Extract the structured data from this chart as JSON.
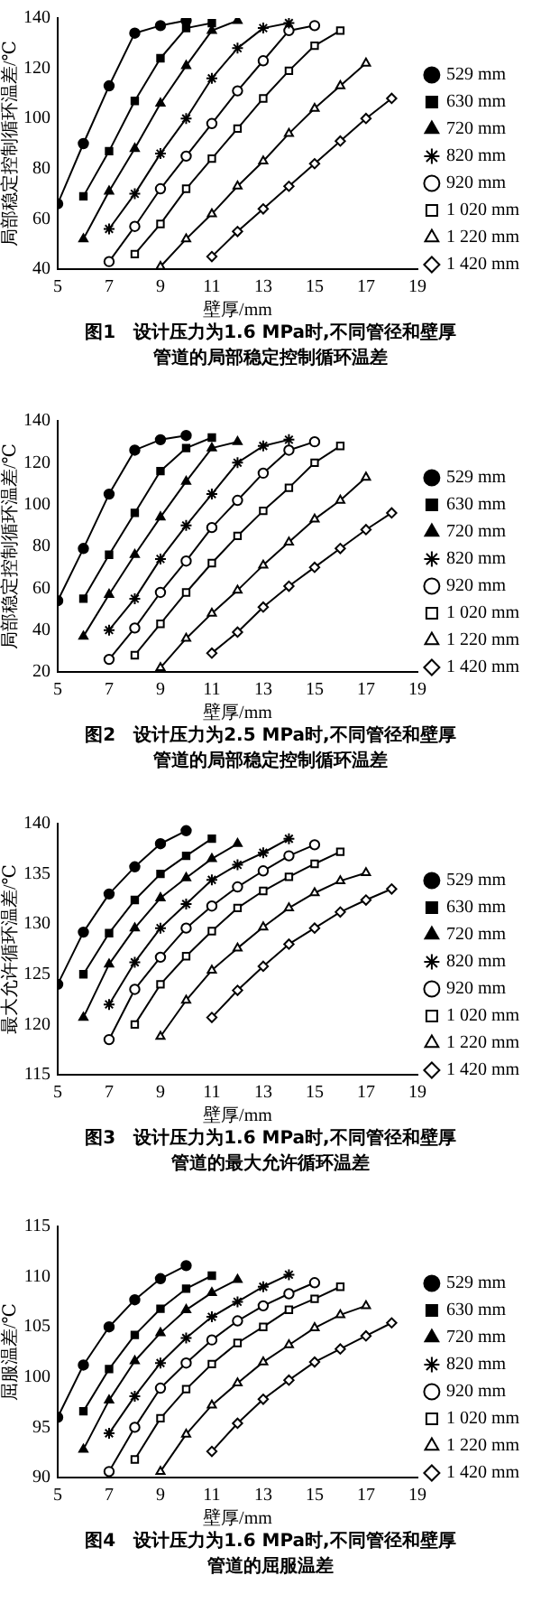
{
  "chart_data": [
    {
      "type": "line",
      "title": "图1　设计压力为1.6 MPa时,不同管径和壁厚管道的局部稳定控制循环温差",
      "xlabel": "壁厚/mm",
      "ylabel": "局部稳定控制循环温差/℃",
      "xlim": [
        5,
        19
      ],
      "xticks": [
        5,
        7,
        9,
        11,
        13,
        15,
        17,
        19
      ],
      "ylim": [
        40,
        140
      ],
      "yticks": [
        40,
        60,
        80,
        100,
        120,
        140
      ],
      "grid": false,
      "legend": "right",
      "line_style": "solid",
      "series": [
        {
          "name": "529 mm",
          "color": "#000000",
          "marker": "circle",
          "x": [
            5,
            6,
            7,
            8,
            9,
            10
          ],
          "values": [
            66,
            90,
            113,
            134,
            137,
            139
          ]
        },
        {
          "name": "630 mm",
          "color": "#000000",
          "marker": "square",
          "x": [
            6,
            7,
            8,
            9,
            10,
            11
          ],
          "values": [
            69,
            87,
            107,
            124,
            136,
            138
          ]
        },
        {
          "name": "720 mm",
          "color": "#000000",
          "marker": "triangle",
          "x": [
            6,
            7,
            8,
            9,
            10,
            11,
            12
          ],
          "values": [
            52,
            71,
            88,
            106,
            121,
            135,
            139
          ]
        },
        {
          "name": "820 mm",
          "color": "#000000",
          "marker": "cross",
          "x": [
            7,
            8,
            9,
            10,
            11,
            12,
            13,
            14
          ],
          "values": [
            56,
            70,
            86,
            100,
            116,
            128,
            136,
            138
          ]
        },
        {
          "name": "920 mm",
          "color": "#000000",
          "marker": "circle",
          "x": [
            7,
            8,
            9,
            10,
            11,
            12,
            13,
            14,
            15
          ],
          "values": [
            43,
            57,
            72,
            85,
            98,
            111,
            123,
            135,
            137
          ]
        },
        {
          "name": "1 020 mm",
          "color": "#000000",
          "marker": "square",
          "x": [
            8,
            9,
            10,
            11,
            12,
            13,
            14,
            15,
            16
          ],
          "values": [
            46,
            58,
            72,
            84,
            96,
            108,
            119,
            129,
            135
          ]
        },
        {
          "name": "1 220 mm",
          "color": "#000000",
          "marker": "triangle",
          "x": [
            9,
            10,
            11,
            12,
            13,
            14,
            15,
            16,
            17
          ],
          "values": [
            41,
            52,
            62,
            73,
            83,
            94,
            104,
            113,
            122
          ]
        },
        {
          "name": "1 420 mm",
          "color": "#000000",
          "marker": "diamond",
          "x": [
            11,
            12,
            13,
            14,
            15,
            16,
            17,
            18
          ],
          "values": [
            45,
            55,
            64,
            73,
            82,
            91,
            100,
            108
          ]
        }
      ]
    },
    {
      "type": "line",
      "title": "图2　设计压力为2.5 MPa时,不同管径和壁厚管道的局部稳定控制循环温差",
      "xlabel": "壁厚/mm",
      "ylabel": "局部稳定控制循环温差/℃",
      "xlim": [
        5,
        19
      ],
      "xticks": [
        5,
        7,
        9,
        11,
        13,
        15,
        17,
        19
      ],
      "ylim": [
        20,
        140
      ],
      "yticks": [
        20,
        40,
        60,
        80,
        100,
        120,
        140
      ],
      "grid": false,
      "legend": "right",
      "line_style": "solid",
      "series": [
        {
          "name": "529 mm",
          "color": "#000000",
          "marker": "circle",
          "x": [
            5,
            6,
            7,
            8,
            9,
            10
          ],
          "values": [
            54,
            79,
            105,
            126,
            131,
            133
          ]
        },
        {
          "name": "630 mm",
          "color": "#000000",
          "marker": "square",
          "x": [
            6,
            7,
            8,
            9,
            10,
            11
          ],
          "values": [
            55,
            76,
            96,
            116,
            127,
            132
          ]
        },
        {
          "name": "720 mm",
          "color": "#000000",
          "marker": "triangle",
          "x": [
            6,
            7,
            8,
            9,
            10,
            11,
            12
          ],
          "values": [
            37,
            57,
            76,
            94,
            111,
            127,
            130
          ]
        },
        {
          "name": "820 mm",
          "color": "#000000",
          "marker": "cross",
          "x": [
            7,
            8,
            9,
            10,
            11,
            12,
            13,
            14
          ],
          "values": [
            40,
            55,
            74,
            90,
            105,
            120,
            128,
            131
          ]
        },
        {
          "name": "920 mm",
          "color": "#000000",
          "marker": "circle",
          "x": [
            7,
            8,
            9,
            10,
            11,
            12,
            13,
            14,
            15
          ],
          "values": [
            26,
            41,
            58,
            73,
            89,
            102,
            115,
            126,
            130
          ]
        },
        {
          "name": "1 020 mm",
          "color": "#000000",
          "marker": "square",
          "x": [
            8,
            9,
            10,
            11,
            12,
            13,
            14,
            15,
            16
          ],
          "values": [
            28,
            43,
            58,
            72,
            85,
            97,
            108,
            120,
            128
          ]
        },
        {
          "name": "1 220 mm",
          "color": "#000000",
          "marker": "triangle",
          "x": [
            9,
            10,
            11,
            12,
            13,
            14,
            15,
            16,
            17
          ],
          "values": [
            22,
            36,
            48,
            59,
            71,
            82,
            93,
            102,
            113
          ]
        },
        {
          "name": "1 420 mm",
          "color": "#000000",
          "marker": "diamond",
          "x": [
            11,
            12,
            13,
            14,
            15,
            16,
            17,
            18
          ],
          "values": [
            29,
            39,
            51,
            61,
            70,
            79,
            88,
            96
          ]
        }
      ]
    },
    {
      "type": "line",
      "title": "图3　设计压力为1.6 MPa时,不同管径和壁厚管道的最大允许循环温差",
      "xlabel": "壁厚/mm",
      "ylabel": "最大允许循环温差/℃",
      "xlim": [
        5,
        19
      ],
      "xticks": [
        5,
        7,
        9,
        11,
        13,
        15,
        17,
        19
      ],
      "ylim": [
        115,
        140
      ],
      "yticks": [
        115,
        120,
        125,
        130,
        135,
        140
      ],
      "grid": false,
      "legend": "right",
      "line_style": "solid",
      "series": [
        {
          "name": "529 mm",
          "color": "#000000",
          "marker": "circle",
          "x": [
            5,
            6,
            7,
            8,
            9,
            10
          ],
          "values": [
            124,
            129.2,
            133,
            135.7,
            138,
            139.3
          ]
        },
        {
          "name": "630 mm",
          "color": "#000000",
          "marker": "square",
          "x": [
            6,
            7,
            8,
            9,
            10,
            11
          ],
          "values": [
            125,
            129.1,
            132.4,
            135,
            136.8,
            138.5
          ]
        },
        {
          "name": "720 mm",
          "color": "#000000",
          "marker": "triangle",
          "x": [
            6,
            7,
            8,
            9,
            10,
            11,
            12
          ],
          "values": [
            120.7,
            126,
            129.6,
            132.6,
            134.6,
            136.5,
            138
          ]
        },
        {
          "name": "820 mm",
          "color": "#000000",
          "marker": "cross",
          "x": [
            7,
            8,
            9,
            10,
            11,
            12,
            13,
            14
          ],
          "values": [
            122,
            126.2,
            129.6,
            132,
            134.4,
            135.9,
            137.1,
            138.5
          ]
        },
        {
          "name": "920 mm",
          "color": "#000000",
          "marker": "circle",
          "x": [
            7,
            8,
            9,
            10,
            11,
            12,
            13,
            14,
            15
          ],
          "values": [
            118.5,
            123.5,
            126.7,
            129.6,
            131.8,
            133.7,
            135.3,
            136.8,
            137.9
          ]
        },
        {
          "name": "1 020 mm",
          "color": "#000000",
          "marker": "square",
          "x": [
            8,
            9,
            10,
            11,
            12,
            13,
            14,
            15,
            16
          ],
          "values": [
            120,
            124,
            126.8,
            129.3,
            131.6,
            133.3,
            134.7,
            136,
            137.2
          ]
        },
        {
          "name": "1 220 mm",
          "color": "#000000",
          "marker": "triangle",
          "x": [
            9,
            10,
            11,
            12,
            13,
            14,
            15,
            16,
            17
          ],
          "values": [
            118.8,
            122.4,
            125.4,
            127.6,
            129.7,
            131.6,
            133.1,
            134.3,
            135.1
          ]
        },
        {
          "name": "1 420 mm",
          "color": "#000000",
          "marker": "diamond",
          "x": [
            11,
            12,
            13,
            14,
            15,
            16,
            17,
            18
          ],
          "values": [
            120.7,
            123.4,
            125.8,
            128,
            129.6,
            131.2,
            132.4,
            133.5
          ]
        }
      ]
    },
    {
      "type": "line",
      "title": "图4　设计压力为1.6 MPa时,不同管径和壁厚管道的屈服温差",
      "xlabel": "壁厚/mm",
      "ylabel": "屈服温差/℃",
      "xlim": [
        5,
        19
      ],
      "xticks": [
        5,
        7,
        9,
        11,
        13,
        15,
        17,
        19
      ],
      "ylim": [
        90,
        115
      ],
      "yticks": [
        90,
        95,
        100,
        105,
        110,
        115
      ],
      "grid": false,
      "legend": "right",
      "line_style": "solid",
      "series": [
        {
          "name": "529 mm",
          "color": "#000000",
          "marker": "circle",
          "x": [
            5,
            6,
            7,
            8,
            9,
            10
          ],
          "values": [
            96,
            101.2,
            105,
            107.7,
            109.8,
            111.1
          ]
        },
        {
          "name": "630 mm",
          "color": "#000000",
          "marker": "square",
          "x": [
            6,
            7,
            8,
            9,
            10,
            11
          ],
          "values": [
            96.6,
            100.8,
            104.2,
            106.8,
            108.8,
            110.1
          ]
        },
        {
          "name": "720 mm",
          "color": "#000000",
          "marker": "triangle",
          "x": [
            6,
            7,
            8,
            9,
            10,
            11,
            12
          ],
          "values": [
            92.8,
            97.7,
            101.6,
            104.4,
            106.7,
            108.4,
            109.7
          ]
        },
        {
          "name": "820 mm",
          "color": "#000000",
          "marker": "cross",
          "x": [
            7,
            8,
            9,
            10,
            11,
            12,
            13,
            14
          ],
          "values": [
            94.4,
            98.1,
            101.4,
            103.9,
            106,
            107.5,
            109,
            110.2
          ]
        },
        {
          "name": "920 mm",
          "color": "#000000",
          "marker": "circle",
          "x": [
            7,
            8,
            9,
            10,
            11,
            12,
            13,
            14,
            15
          ],
          "values": [
            90.6,
            95,
            98.9,
            101.4,
            103.7,
            105.6,
            107.1,
            108.3,
            109.4
          ]
        },
        {
          "name": "1 020 mm",
          "color": "#000000",
          "marker": "square",
          "x": [
            8,
            9,
            10,
            11,
            12,
            13,
            14,
            15,
            16
          ],
          "values": [
            91.8,
            95.9,
            98.8,
            101.3,
            103.4,
            105,
            106.7,
            107.8,
            109
          ]
        },
        {
          "name": "1 220 mm",
          "color": "#000000",
          "marker": "triangle",
          "x": [
            9,
            10,
            11,
            12,
            13,
            14,
            15,
            16,
            17
          ],
          "values": [
            90.6,
            94.3,
            97.2,
            99.4,
            101.5,
            103.2,
            104.9,
            106.2,
            107.1
          ]
        },
        {
          "name": "1 420 mm",
          "color": "#000000",
          "marker": "diamond",
          "x": [
            11,
            12,
            13,
            14,
            15,
            16,
            17,
            18
          ],
          "values": [
            92.6,
            95.4,
            97.8,
            99.7,
            101.5,
            102.8,
            104.1,
            105.4
          ]
        }
      ]
    }
  ]
}
